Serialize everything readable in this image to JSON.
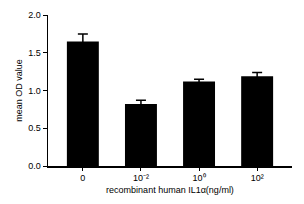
{
  "chart_data": {
    "type": "bar",
    "x_label": "recombinant human IL1α(ng/ml)",
    "y_label": "mean OD value",
    "categories": [
      "0",
      "10⁻²",
      "10⁰",
      "10²"
    ],
    "values": [
      1.65,
      0.82,
      1.12,
      1.19
    ],
    "errors": [
      0.1,
      0.05,
      0.03,
      0.05
    ],
    "color": "#000000",
    "ylim": [
      0,
      2.0
    ],
    "yticks": [
      {
        "value": 0,
        "label": "0.0"
      },
      {
        "value": 0.5,
        "label": "0.5"
      },
      {
        "value": 1,
        "label": "1.0"
      },
      {
        "value": 1.5,
        "label": "1.5"
      },
      {
        "value": 2,
        "label": "2.0"
      }
    ],
    "grid": false
  }
}
